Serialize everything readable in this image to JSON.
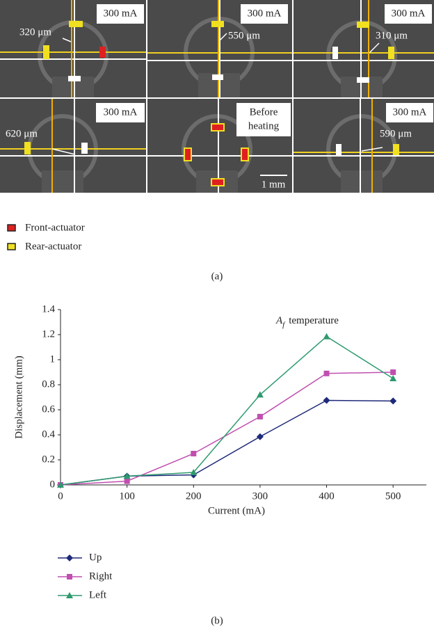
{
  "panel_a": {
    "tiles": [
      {
        "label": [
          "300 mA"
        ],
        "measurement": "320 μm"
      },
      {
        "label": [
          "300 mA"
        ],
        "measurement": "550 μm"
      },
      {
        "label": [
          "300 mA"
        ],
        "measurement": "310 μm"
      },
      {
        "label": [
          "300 mA"
        ],
        "measurement": "620 μm"
      },
      {
        "label": [
          "Before",
          "heating"
        ],
        "scale_bar": "1 mm"
      },
      {
        "label": [
          "300 mA"
        ],
        "measurement": "590 μm"
      }
    ],
    "legend": [
      "Front-actuator",
      "Rear-actuator"
    ],
    "caption": "(a)"
  },
  "chart_data": {
    "type": "line",
    "x_label": "Current (mA)",
    "y_label": "Displacement (mm)",
    "annotation": [
      "A",
      "f",
      "temperature"
    ],
    "x": [
      0,
      100,
      200,
      300,
      400,
      500
    ],
    "series": [
      {
        "name": "Up",
        "color": "#1f2a7a",
        "marker": "diamond",
        "values": [
          0,
          0.07,
          0.08,
          0.385,
          0.675,
          0.67
        ]
      },
      {
        "name": "Right",
        "color": "#c04fb0",
        "marker": "square",
        "values": [
          0,
          0.03,
          0.25,
          0.545,
          0.89,
          0.9
        ]
      },
      {
        "name": "Left",
        "color": "#2e9a6e",
        "marker": "triangle",
        "values": [
          0,
          0.07,
          0.1,
          0.72,
          1.185,
          0.85
        ]
      }
    ],
    "xlim": [
      0,
      550
    ],
    "xticks": [
      0,
      100,
      200,
      300,
      400,
      500
    ],
    "ylim": [
      0,
      1.4
    ],
    "yticks": [
      0,
      0.2,
      0.4,
      0.6,
      0.8,
      1,
      1.2,
      1.4
    ],
    "grid": false,
    "caption": "(b)"
  }
}
